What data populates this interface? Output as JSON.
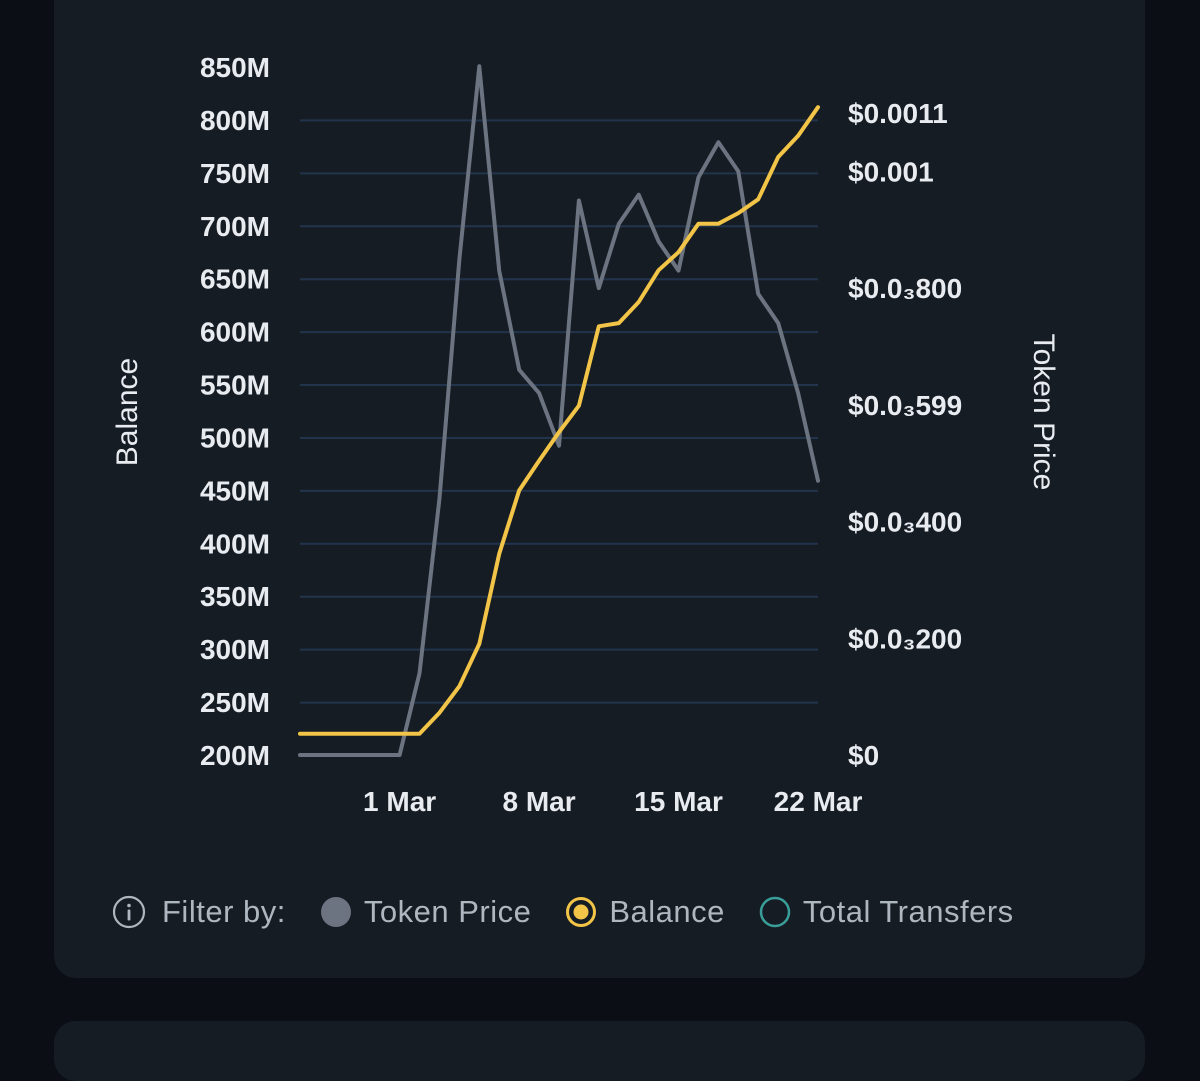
{
  "chart_data": {
    "type": "line",
    "xlabel": "",
    "ylabel": "Balance",
    "y2label": "Token Price",
    "x_ticks": [
      "1 Mar",
      "8 Mar",
      "15 Mar",
      "22 Mar"
    ],
    "x_tick_positions": [
      "2024-03-01",
      "2024-03-08",
      "2024-03-15",
      "2024-03-22"
    ],
    "x_range": [
      "2024-02-25",
      "2024-03-22"
    ],
    "y_ticks": [
      "850M",
      "800M",
      "750M",
      "700M",
      "650M",
      "600M",
      "550M",
      "500M",
      "450M",
      "400M",
      "350M",
      "300M",
      "250M",
      "200M"
    ],
    "y_tick_values": [
      850,
      800,
      750,
      700,
      650,
      600,
      550,
      500,
      450,
      400,
      350,
      300,
      250,
      200
    ],
    "ylim": [
      200,
      850
    ],
    "y_unit": "M",
    "y2_ticks": [
      "$0.0011",
      "$0.001",
      "$0.0₃800",
      "$0.0₃599",
      "$0.0₃400",
      "$0.0₃200",
      "$0"
    ],
    "y2_tick_values": [
      0.0011,
      0.001,
      0.0008,
      0.0006,
      0.0004,
      0.0002,
      0
    ],
    "y2lim": [
      0,
      0.0011
    ],
    "grid": true,
    "series": [
      {
        "name": "Token Price",
        "axis": "right",
        "color": "#6b7480",
        "points": [
          [
            "2024-02-25",
            0
          ],
          [
            "2024-02-26",
            0
          ],
          [
            "2024-02-27",
            0
          ],
          [
            "2024-02-28",
            0
          ],
          [
            "2024-02-29",
            0
          ],
          [
            "2024-03-01",
            0
          ],
          [
            "2024-03-02",
            0.00014
          ],
          [
            "2024-03-03",
            0.00044
          ],
          [
            "2024-03-04",
            0.00085
          ],
          [
            "2024-03-05",
            0.00118
          ],
          [
            "2024-03-06",
            0.00083
          ],
          [
            "2024-03-07",
            0.00066
          ],
          [
            "2024-03-08",
            0.00062
          ],
          [
            "2024-03-09",
            0.00053
          ],
          [
            "2024-03-10",
            0.00095
          ],
          [
            "2024-03-11",
            0.0008
          ],
          [
            "2024-03-12",
            0.00091
          ],
          [
            "2024-03-13",
            0.00096
          ],
          [
            "2024-03-14",
            0.00088
          ],
          [
            "2024-03-15",
            0.00083
          ],
          [
            "2024-03-16",
            0.00099
          ],
          [
            "2024-03-17",
            0.00105
          ],
          [
            "2024-03-18",
            0.001
          ],
          [
            "2024-03-19",
            0.00079
          ],
          [
            "2024-03-20",
            0.00074
          ],
          [
            "2024-03-21",
            0.00062
          ],
          [
            "2024-03-22",
            0.00047
          ]
        ]
      },
      {
        "name": "Balance",
        "axis": "left",
        "color": "#f2c447",
        "points": [
          [
            "2024-02-25",
            220
          ],
          [
            "2024-02-26",
            220
          ],
          [
            "2024-02-27",
            220
          ],
          [
            "2024-02-28",
            220
          ],
          [
            "2024-02-29",
            220
          ],
          [
            "2024-03-01",
            220
          ],
          [
            "2024-03-02",
            220
          ],
          [
            "2024-03-03",
            240
          ],
          [
            "2024-03-04",
            265
          ],
          [
            "2024-03-05",
            305
          ],
          [
            "2024-03-06",
            390
          ],
          [
            "2024-03-07",
            450
          ],
          [
            "2024-03-08",
            478
          ],
          [
            "2024-03-09",
            505
          ],
          [
            "2024-03-10",
            530
          ],
          [
            "2024-03-11",
            605
          ],
          [
            "2024-03-12",
            608
          ],
          [
            "2024-03-13",
            628
          ],
          [
            "2024-03-14",
            658
          ],
          [
            "2024-03-15",
            675
          ],
          [
            "2024-03-16",
            702
          ],
          [
            "2024-03-17",
            702
          ],
          [
            "2024-03-18",
            712
          ],
          [
            "2024-03-19",
            725
          ],
          [
            "2024-03-20",
            765
          ],
          [
            "2024-03-21",
            785
          ],
          [
            "2024-03-22",
            812
          ]
        ]
      }
    ]
  },
  "legend": {
    "filter_label": "Filter by:",
    "items": [
      {
        "label": "Token Price",
        "state": "active",
        "color": "#6b7480"
      },
      {
        "label": "Balance",
        "state": "active",
        "color": "#f2c447"
      },
      {
        "label": "Total Transfers",
        "state": "inactive",
        "color": "#3a9e98"
      }
    ]
  },
  "colors": {
    "card_bg": "#161c24",
    "page_bg": "#0b0f15",
    "grid": "#22344c",
    "text": "#e8ebef"
  }
}
